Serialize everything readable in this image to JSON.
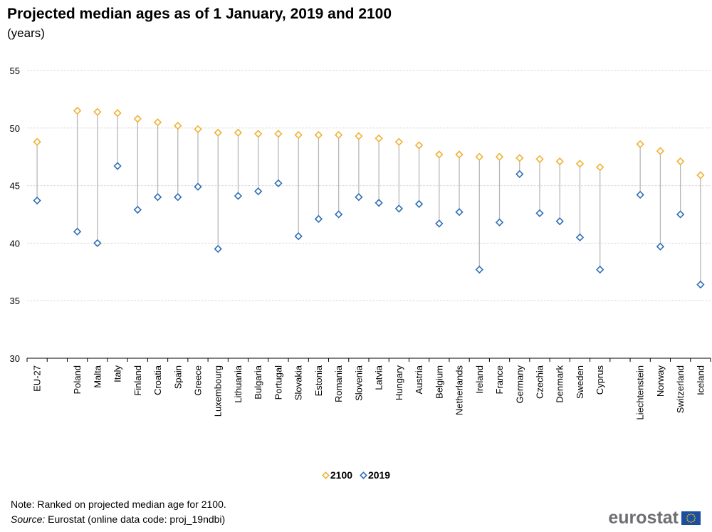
{
  "title": "Projected median ages as of 1 January, 2019 and 2100",
  "subtitle": "(years)",
  "legend": {
    "a": "2100",
    "b": "2019"
  },
  "note": "Note: Ranked on projected median age for 2100.",
  "source_label": "Source:",
  "source_text": " Eurostat (online data code: proj_19ndbi)",
  "logo": "eurostat",
  "colors": {
    "c2100": "#f0b134",
    "c2019": "#2f6eb5",
    "connector": "#b7b7b7",
    "grid": "#d0d0d0"
  },
  "chart_data": {
    "type": "scatter",
    "ylim": [
      30,
      55
    ],
    "yticks": [
      30,
      35,
      40,
      45,
      50,
      55
    ],
    "grid": true,
    "legend_position": "bottom",
    "categories": [
      "EU-27",
      "Poland",
      "Malta",
      "Italy",
      "Finland",
      "Croatia",
      "Spain",
      "Greece",
      "Luxembourg",
      "Lithuania",
      "Bulgaria",
      "Portugal",
      "Slovakia",
      "Estonia",
      "Romania",
      "Slovenia",
      "Latvia",
      "Hungary",
      "Austria",
      "Belgium",
      "Netherlands",
      "Ireland",
      "France",
      "Germany",
      "Czechia",
      "Denmark",
      "Sweden",
      "Cyprus",
      "Liechtenstein",
      "Norway",
      "Switzerland",
      "Iceland"
    ],
    "series": [
      {
        "name": "2100",
        "values": [
          48.8,
          51.5,
          51.4,
          51.3,
          50.8,
          50.5,
          50.2,
          49.9,
          49.6,
          49.6,
          49.5,
          49.5,
          49.4,
          49.4,
          49.4,
          49.3,
          49.1,
          48.8,
          48.5,
          47.7,
          47.7,
          47.5,
          47.5,
          47.4,
          47.3,
          47.1,
          46.9,
          46.6,
          48.6,
          48.0,
          47.1,
          45.9
        ]
      },
      {
        "name": "2019",
        "values": [
          43.7,
          41.0,
          40.0,
          46.7,
          42.9,
          44.0,
          44.0,
          44.9,
          39.5,
          44.1,
          44.5,
          45.2,
          40.6,
          42.1,
          42.5,
          44.0,
          43.5,
          43.0,
          43.4,
          41.7,
          42.7,
          37.7,
          41.8,
          46.0,
          42.6,
          41.9,
          40.5,
          37.7,
          44.2,
          39.7,
          42.5,
          36.4
        ]
      }
    ]
  }
}
